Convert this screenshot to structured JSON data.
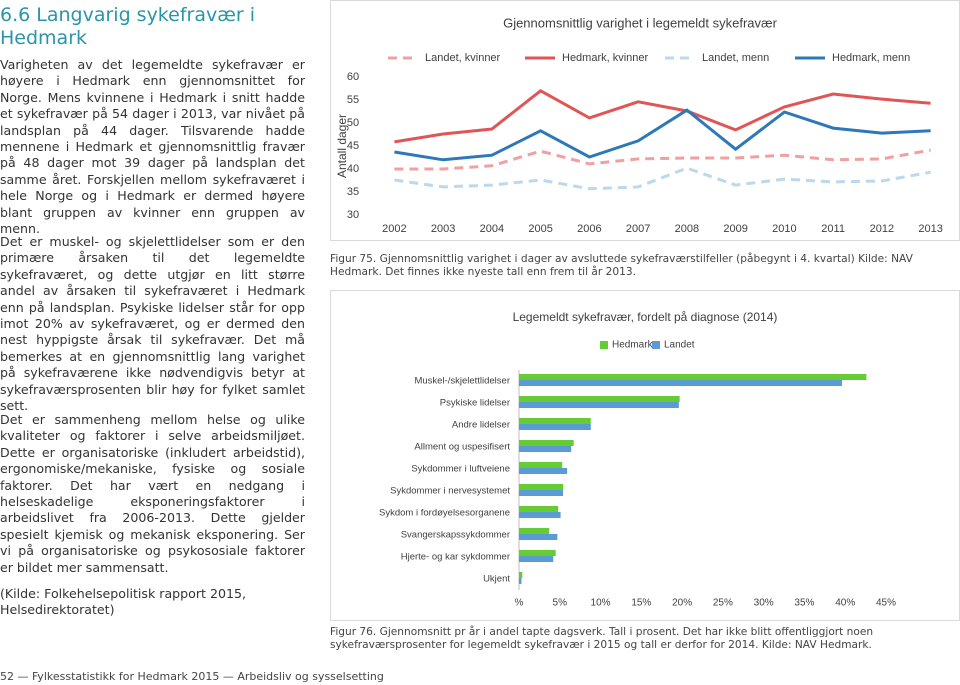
{
  "heading": "6.6 Langvarig sykefravær i Hedmark",
  "paragraphs": [
    "Varigheten av det legemeldte sykefravær er høyere i Hedmark enn gjennomsnittet for Norge. Mens kvinnene i Hedmark i snitt hadde et sykefravær på 54 dager i 2013, var nivået på landsplan på 44 dager. Tilsvarende hadde mennene i Hedmark et gjennomsnittlig fravær på 48 dager mot 39 dager på landsplan det samme året. Forskjellen mellom sykefraværet i hele Norge og i Hedmark er dermed høyere blant gruppen av kvinner enn gruppen av menn.",
    "Det er muskel- og skjelettlidelser som er den primære årsaken til det legemeldte sykefraværet, og dette utgjør en litt større andel av årsaken til sykefraværet i Hedmark enn på landsplan. Psykiske lidelser står for opp imot 20% av sykefraværet, og er dermed den nest hyppigste årsak til sykefravær. Det må bemerkes at en gjennomsnittlig lang varighet på sykefraværene ikke nødvendigvis betyr at sykefraværsprosenten blir høy for fylket samlet sett.",
    "Det er sammenheng mellom helse og ulike kvaliteter og faktorer i selve arbeidsmiljøet. Dette er organisatoriske (inkludert arbeidstid), ergonomiske/mekaniske, fysiske og sosiale faktorer. Det har vært en nedgang i helseskadelige eksponeringsfaktorer i arbeidslivet fra 2006-2013. Dette gjelder spesielt kjemisk og mekanisk eksponering. Ser vi på organisatoriske og psykososiale faktorer er bildet mer sammensatt."
  ],
  "source": "(Kilde: Folkehelsepolitisk rapport 2015, Helsedirektoratet)",
  "footer": "52 — Fylkesstatistikk for Hedmark 2015 — Arbeidsliv og sysselsetting",
  "chart_data": [
    {
      "type": "line",
      "title": "Gjennomsnittlig varighet i legemeldt sykefravær",
      "y_label": "Antall dager",
      "caption": "Figur 75. Gjennomsnittlig varighet i dager av avsluttede sykefraværstilfeller (påbegynt i 4. kvartal) Kilde: NAV Hedmark. Det finnes ikke nyeste tall enn frem til år 2013.",
      "categories": [
        "2002",
        "2003",
        "2004",
        "2005",
        "2006",
        "2007",
        "2008",
        "2009",
        "2010",
        "2011",
        "2012",
        "2013"
      ],
      "ylim": [
        30,
        60
      ],
      "yticks": [
        30,
        35,
        40,
        45,
        50,
        55,
        60
      ],
      "series": [
        {
          "name": "Landet, kvinner",
          "color": "#f0a0a0",
          "line_style": "dashed",
          "values": [
            40.0,
            40.0,
            40.7,
            43.9,
            41.1,
            42.2,
            42.4,
            42.4,
            43.0,
            42.0,
            42.2,
            44.1
          ]
        },
        {
          "name": "Hedmark, kvinner",
          "color": "#e05656",
          "line_style": "solid",
          "values": [
            45.9,
            47.6,
            48.7,
            57.0,
            51.1,
            54.6,
            52.6,
            48.5,
            53.5,
            56.3,
            55.2,
            54.3
          ]
        },
        {
          "name": "Landet, menn",
          "color": "#bcd8ee",
          "line_style": "dashed",
          "values": [
            37.6,
            36.1,
            36.5,
            37.6,
            35.7,
            36.1,
            40.2,
            36.5,
            37.8,
            37.2,
            37.4,
            39.3
          ]
        },
        {
          "name": "Hedmark, menn",
          "color": "#2e78b8",
          "line_style": "solid",
          "values": [
            43.7,
            42.0,
            43.0,
            48.3,
            42.6,
            46.1,
            52.8,
            44.3,
            52.4,
            48.9,
            47.8,
            48.3
          ]
        }
      ]
    },
    {
      "type": "bar",
      "orientation": "horizontal",
      "title": "Legemeldt sykefravær, fordelt på diagnose (2014)",
      "caption": "Figur 76. Gjennomsnitt pr år i andel tapte dagsverk. Tall i prosent. Det har ikke blitt offentliggjort noen sykefraværsprosenter for legemeldt sykefravær i 2015 og tall er derfor for 2014. Kilde: NAV Hedmark.",
      "categories": [
        "Muskel-/skjelettlidelser",
        "Psykiske lidelser",
        "Andre lidelser",
        "Allment og uspesifisert",
        "Sykdommer i luftveiene",
        "Sykdommer i nervesystemet",
        "Sykdom i fordøyelsesorganene",
        "Svangerskapssykdommer",
        "Hjerte- og kar sykdommer",
        "Ukjent"
      ],
      "xlim": [
        0,
        45
      ],
      "xticks": [
        {
          "value": 0,
          "label": "%"
        },
        {
          "value": 5,
          "label": "5%"
        },
        {
          "value": 10,
          "label": "10%"
        },
        {
          "value": 15,
          "label": "15%"
        },
        {
          "value": 20,
          "label": "20%"
        },
        {
          "value": 25,
          "label": "25%"
        },
        {
          "value": 30,
          "label": "30%"
        },
        {
          "value": 35,
          "label": "35%"
        },
        {
          "value": 40,
          "label": "40%"
        },
        {
          "value": 45,
          "label": "45%"
        }
      ],
      "series": [
        {
          "name": "Hedmark",
          "color": "#66cc33",
          "values": [
            42.6,
            19.7,
            8.8,
            6.7,
            5.3,
            5.4,
            4.8,
            3.7,
            4.5,
            0.4
          ]
        },
        {
          "name": "Landet",
          "color": "#5b9bd5",
          "values": [
            39.6,
            19.6,
            8.8,
            6.4,
            5.9,
            5.4,
            5.1,
            4.7,
            4.2,
            0.3
          ]
        }
      ]
    }
  ]
}
